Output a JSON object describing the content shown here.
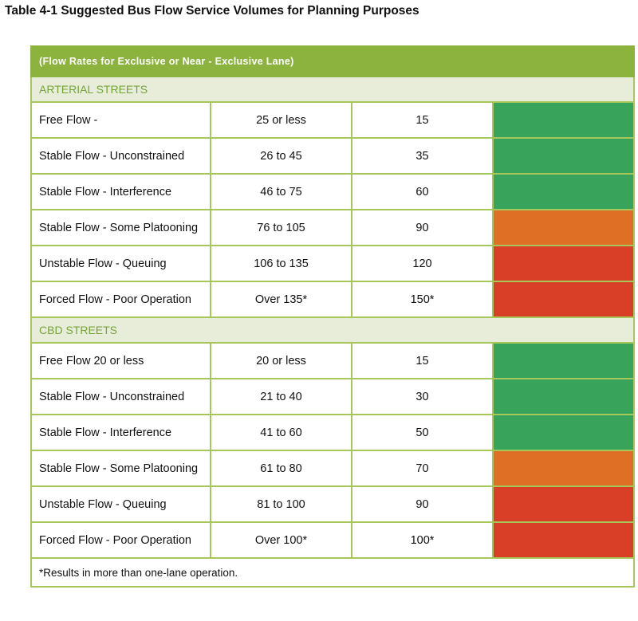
{
  "title": "Table 4-1 Suggested Bus Flow Service Volumes for Planning Purposes",
  "header_row": "(Flow Rates for Exclusive or Near -  Exclusive Lane)",
  "colors": {
    "green": "#38a35a",
    "orange": "#df6f25",
    "red": "#d93f27",
    "header_green": "#8db33f",
    "section_bg": "#e8edd9",
    "section_text": "#74a33a"
  },
  "sections": [
    {
      "label": "ARTERIAL STREETS",
      "rows": [
        {
          "condition": "Free Flow -",
          "range": "25 or less",
          "value": "15",
          "color": "green"
        },
        {
          "condition": "Stable Flow - Unconstrained",
          "range": "26 to 45",
          "value": "35",
          "color": "green"
        },
        {
          "condition": "Stable Flow - Interference",
          "range": "46 to 75",
          "value": "60",
          "color": "green"
        },
        {
          "condition": "Stable Flow - Some Platooning",
          "range": "76 to 105",
          "value": "90",
          "color": "orange"
        },
        {
          "condition": "Unstable Flow - Queuing",
          "range": "106 to 135",
          "value": "120",
          "color": "red"
        },
        {
          "condition": "Forced Flow - Poor Operation",
          "range": "Over 135*",
          "value": "150*",
          "color": "red"
        }
      ]
    },
    {
      "label": "CBD STREETS",
      "rows": [
        {
          "condition": "Free Flow 20 or less",
          "range": "20 or less",
          "value": "15",
          "color": "green"
        },
        {
          "condition": "Stable Flow - Unconstrained",
          "range": "21 to 40",
          "value": "30",
          "color": "green"
        },
        {
          "condition": "Stable Flow - Interference",
          "range": "41 to 60",
          "value": "50",
          "color": "green"
        },
        {
          "condition": "Stable Flow - Some Platooning",
          "range": "61 to 80",
          "value": "70",
          "color": "orange"
        },
        {
          "condition": "Unstable Flow - Queuing",
          "range": "81 to 100",
          "value": "90",
          "color": "red"
        },
        {
          "condition": "Forced Flow - Poor Operation",
          "range": "Over 100*",
          "value": "100*",
          "color": "red"
        }
      ]
    }
  ],
  "footnote": "*Results in more than one-lane operation."
}
